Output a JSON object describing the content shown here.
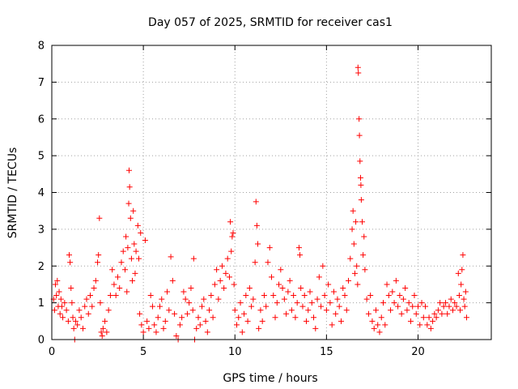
{
  "chart_data": {
    "type": "scatter",
    "title": "Day 057 of 2025, SRMTID for receiver cas1",
    "xlabel": "GPS time / hours",
    "ylabel": "SRMTID / TECUs",
    "xlim": [
      0,
      24
    ],
    "ylim": [
      0,
      8
    ],
    "xticks": [
      0,
      5,
      10,
      15,
      20
    ],
    "yticks": [
      0,
      1,
      2,
      3,
      4,
      5,
      6,
      7,
      8
    ],
    "grid": true,
    "marker": "+",
    "color": "#ff0000",
    "series": [
      {
        "name": "SRMTID",
        "points": [
          [
            0.1,
            1.1
          ],
          [
            0.15,
            0.8
          ],
          [
            0.2,
            1.5
          ],
          [
            0.25,
            1.2
          ],
          [
            0.3,
            1.6
          ],
          [
            0.35,
            0.9
          ],
          [
            0.4,
            1.3
          ],
          [
            0.45,
            0.7
          ],
          [
            0.5,
            1.1
          ],
          [
            0.55,
            0.9
          ],
          [
            0.6,
            0.6
          ],
          [
            0.7,
            1.0
          ],
          [
            0.8,
            0.8
          ],
          [
            0.9,
            0.5
          ],
          [
            0.95,
            2.3
          ],
          [
            1.0,
            2.1
          ],
          [
            1.05,
            1.4
          ],
          [
            1.1,
            1.0
          ],
          [
            1.15,
            0.6
          ],
          [
            1.2,
            0.3
          ],
          [
            1.25,
            0.0
          ],
          [
            1.3,
            0.5
          ],
          [
            1.4,
            0.4
          ],
          [
            1.5,
            0.8
          ],
          [
            1.6,
            0.6
          ],
          [
            1.7,
            0.3
          ],
          [
            1.8,
            0.9
          ],
          [
            1.9,
            1.1
          ],
          [
            2.0,
            0.7
          ],
          [
            2.1,
            1.2
          ],
          [
            2.2,
            0.9
          ],
          [
            2.3,
            1.4
          ],
          [
            2.4,
            1.6
          ],
          [
            2.5,
            2.1
          ],
          [
            2.55,
            2.3
          ],
          [
            2.6,
            3.3
          ],
          [
            2.65,
            1.0
          ],
          [
            2.7,
            0.2
          ],
          [
            2.75,
            0.1
          ],
          [
            2.8,
            0.3
          ],
          [
            2.9,
            0.5
          ],
          [
            3.0,
            0.2
          ],
          [
            3.1,
            0.8
          ],
          [
            3.2,
            1.2
          ],
          [
            3.3,
            1.9
          ],
          [
            3.4,
            1.5
          ],
          [
            3.5,
            1.2
          ],
          [
            3.6,
            1.7
          ],
          [
            3.7,
            1.4
          ],
          [
            3.8,
            2.1
          ],
          [
            3.9,
            2.4
          ],
          [
            4.0,
            1.9
          ],
          [
            4.05,
            2.8
          ],
          [
            4.1,
            1.3
          ],
          [
            4.15,
            2.5
          ],
          [
            4.2,
            3.7
          ],
          [
            4.22,
            4.6
          ],
          [
            4.25,
            4.15
          ],
          [
            4.3,
            3.3
          ],
          [
            4.35,
            2.2
          ],
          [
            4.4,
            1.6
          ],
          [
            4.45,
            3.5
          ],
          [
            4.5,
            2.6
          ],
          [
            4.55,
            1.8
          ],
          [
            4.6,
            2.4
          ],
          [
            4.7,
            3.1
          ],
          [
            4.75,
            2.2
          ],
          [
            4.8,
            0.7
          ],
          [
            4.85,
            2.9
          ],
          [
            4.9,
            0.4
          ],
          [
            5.0,
            0.2
          ],
          [
            5.1,
            2.7
          ],
          [
            5.2,
            0.5
          ],
          [
            5.3,
            0.3
          ],
          [
            5.4,
            1.2
          ],
          [
            5.5,
            0.9
          ],
          [
            5.6,
            0.4
          ],
          [
            5.7,
            0.2
          ],
          [
            5.8,
            0.6
          ],
          [
            5.9,
            0.9
          ],
          [
            6.0,
            1.1
          ],
          [
            6.1,
            0.3
          ],
          [
            6.2,
            0.5
          ],
          [
            6.3,
            1.3
          ],
          [
            6.4,
            0.8
          ],
          [
            6.5,
            2.25
          ],
          [
            6.6,
            1.6
          ],
          [
            6.7,
            0.7
          ],
          [
            6.8,
            0.1
          ],
          [
            6.9,
            0.0
          ],
          [
            7.0,
            0.4
          ],
          [
            7.1,
            0.6
          ],
          [
            7.2,
            1.3
          ],
          [
            7.3,
            1.1
          ],
          [
            7.4,
            0.7
          ],
          [
            7.5,
            1.0
          ],
          [
            7.6,
            1.4
          ],
          [
            7.7,
            0.8
          ],
          [
            7.75,
            2.2
          ],
          [
            7.8,
            0.0
          ],
          [
            7.9,
            0.3
          ],
          [
            8.0,
            0.6
          ],
          [
            8.1,
            0.4
          ],
          [
            8.2,
            0.9
          ],
          [
            8.3,
            1.1
          ],
          [
            8.4,
            0.5
          ],
          [
            8.5,
            0.2
          ],
          [
            8.6,
            0.8
          ],
          [
            8.7,
            1.2
          ],
          [
            8.8,
            0.6
          ],
          [
            8.9,
            1.5
          ],
          [
            9.0,
            1.9
          ],
          [
            9.1,
            1.1
          ],
          [
            9.2,
            1.6
          ],
          [
            9.3,
            2.0
          ],
          [
            9.4,
            1.4
          ],
          [
            9.5,
            1.8
          ],
          [
            9.6,
            2.2
          ],
          [
            9.7,
            1.7
          ],
          [
            9.75,
            3.2
          ],
          [
            9.8,
            2.4
          ],
          [
            9.85,
            2.8
          ],
          [
            9.9,
            2.9
          ],
          [
            9.95,
            1.5
          ],
          [
            10.0,
            0.8
          ],
          [
            10.1,
            0.4
          ],
          [
            10.2,
            0.6
          ],
          [
            10.3,
            1.0
          ],
          [
            10.4,
            0.2
          ],
          [
            10.5,
            0.7
          ],
          [
            10.6,
            1.2
          ],
          [
            10.7,
            0.5
          ],
          [
            10.8,
            1.4
          ],
          [
            10.9,
            0.9
          ],
          [
            11.0,
            1.1
          ],
          [
            11.1,
            2.1
          ],
          [
            11.15,
            3.75
          ],
          [
            11.2,
            3.1
          ],
          [
            11.25,
            2.6
          ],
          [
            11.3,
            0.3
          ],
          [
            11.4,
            0.8
          ],
          [
            11.5,
            0.5
          ],
          [
            11.6,
            1.2
          ],
          [
            11.7,
            0.9
          ],
          [
            11.8,
            2.1
          ],
          [
            11.9,
            2.5
          ],
          [
            12.0,
            1.7
          ],
          [
            12.1,
            1.2
          ],
          [
            12.2,
            0.6
          ],
          [
            12.3,
            1.0
          ],
          [
            12.4,
            1.5
          ],
          [
            12.5,
            1.9
          ],
          [
            12.6,
            1.4
          ],
          [
            12.7,
            1.1
          ],
          [
            12.8,
            0.7
          ],
          [
            12.9,
            1.3
          ],
          [
            13.0,
            1.6
          ],
          [
            13.1,
            0.8
          ],
          [
            13.2,
            1.2
          ],
          [
            13.3,
            0.6
          ],
          [
            13.4,
            1.0
          ],
          [
            13.5,
            2.5
          ],
          [
            13.55,
            2.3
          ],
          [
            13.6,
            1.4
          ],
          [
            13.7,
            0.9
          ],
          [
            13.8,
            1.2
          ],
          [
            13.9,
            0.5
          ],
          [
            14.0,
            0.8
          ],
          [
            14.1,
            1.3
          ],
          [
            14.2,
            1.0
          ],
          [
            14.3,
            0.6
          ],
          [
            14.4,
            0.3
          ],
          [
            14.5,
            1.1
          ],
          [
            14.6,
            1.7
          ],
          [
            14.7,
            0.9
          ],
          [
            14.8,
            2.0
          ],
          [
            14.9,
            1.2
          ],
          [
            15.0,
            0.8
          ],
          [
            15.1,
            1.5
          ],
          [
            15.2,
            1.0
          ],
          [
            15.3,
            0.4
          ],
          [
            15.4,
            1.3
          ],
          [
            15.5,
            0.7
          ],
          [
            15.6,
            1.1
          ],
          [
            15.7,
            0.9
          ],
          [
            15.8,
            0.5
          ],
          [
            15.9,
            1.4
          ],
          [
            16.0,
            1.2
          ],
          [
            16.1,
            0.8
          ],
          [
            16.2,
            1.6
          ],
          [
            16.3,
            2.2
          ],
          [
            16.4,
            3.0
          ],
          [
            16.45,
            3.5
          ],
          [
            16.5,
            2.6
          ],
          [
            16.55,
            1.8
          ],
          [
            16.6,
            3.2
          ],
          [
            16.65,
            2.0
          ],
          [
            16.7,
            1.5
          ],
          [
            16.72,
            7.4
          ],
          [
            16.74,
            7.25
          ],
          [
            16.78,
            6.0
          ],
          [
            16.8,
            5.55
          ],
          [
            16.83,
            4.85
          ],
          [
            16.86,
            4.4
          ],
          [
            16.88,
            4.2
          ],
          [
            16.9,
            3.8
          ],
          [
            16.95,
            3.2
          ],
          [
            17.0,
            2.3
          ],
          [
            17.05,
            2.8
          ],
          [
            17.1,
            1.9
          ],
          [
            17.2,
            1.1
          ],
          [
            17.3,
            0.7
          ],
          [
            17.4,
            1.2
          ],
          [
            17.5,
            0.5
          ],
          [
            17.6,
            0.3
          ],
          [
            17.7,
            0.8
          ],
          [
            17.8,
            0.4
          ],
          [
            17.9,
            0.2
          ],
          [
            18.0,
            0.6
          ],
          [
            18.1,
            1.0
          ],
          [
            18.2,
            0.4
          ],
          [
            18.3,
            1.5
          ],
          [
            18.4,
            1.2
          ],
          [
            18.5,
            0.8
          ],
          [
            18.6,
            1.3
          ],
          [
            18.7,
            1.0
          ],
          [
            18.8,
            1.6
          ],
          [
            18.9,
            0.9
          ],
          [
            19.0,
            1.2
          ],
          [
            19.1,
            0.7
          ],
          [
            19.2,
            1.1
          ],
          [
            19.3,
            1.4
          ],
          [
            19.4,
            0.8
          ],
          [
            19.5,
            1.0
          ],
          [
            19.6,
            0.5
          ],
          [
            19.7,
            0.9
          ],
          [
            19.8,
            1.2
          ],
          [
            19.9,
            0.7
          ],
          [
            20.0,
            0.9
          ],
          [
            20.1,
            0.4
          ],
          [
            20.2,
            1.0
          ],
          [
            20.3,
            0.6
          ],
          [
            20.4,
            0.9
          ],
          [
            20.5,
            0.4
          ],
          [
            20.6,
            0.6
          ],
          [
            20.7,
            0.3
          ],
          [
            20.8,
            0.5
          ],
          [
            20.9,
            0.7
          ],
          [
            21.0,
            0.6
          ],
          [
            21.1,
            0.8
          ],
          [
            21.2,
            1.0
          ],
          [
            21.3,
            0.7
          ],
          [
            21.4,
            0.9
          ],
          [
            21.5,
            1.0
          ],
          [
            21.6,
            0.7
          ],
          [
            21.7,
            0.9
          ],
          [
            21.8,
            1.1
          ],
          [
            21.9,
            0.8
          ],
          [
            22.0,
            1.0
          ],
          [
            22.1,
            0.9
          ],
          [
            22.2,
            1.8
          ],
          [
            22.25,
            1.2
          ],
          [
            22.3,
            0.8
          ],
          [
            22.35,
            1.5
          ],
          [
            22.4,
            1.9
          ],
          [
            22.45,
            2.3
          ],
          [
            22.5,
            1.1
          ],
          [
            22.55,
            0.9
          ],
          [
            22.6,
            1.3
          ],
          [
            22.65,
            0.6
          ]
        ]
      }
    ]
  }
}
